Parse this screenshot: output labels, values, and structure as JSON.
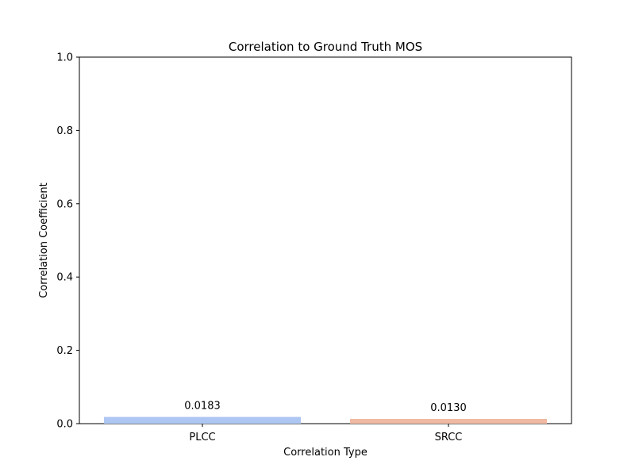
{
  "chart_data": {
    "type": "bar",
    "title": "Correlation to Ground Truth MOS",
    "xlabel": "Correlation Type",
    "ylabel": "Correlation Coefficient",
    "categories": [
      "PLCC",
      "SRCC"
    ],
    "values": [
      0.0183,
      0.013
    ],
    "data_labels": [
      "0.0183",
      "0.0130"
    ],
    "bar_colors": [
      "#aec6f2",
      "#f0b9a3"
    ],
    "ylim": [
      0,
      1.0
    ],
    "yticks": [
      0.0,
      0.2,
      0.4,
      0.6,
      0.8,
      1.0
    ],
    "ytick_labels": [
      "0.0",
      "0.2",
      "0.4",
      "0.6",
      "0.8",
      "1.0"
    ],
    "grid": false,
    "legend": "none"
  }
}
